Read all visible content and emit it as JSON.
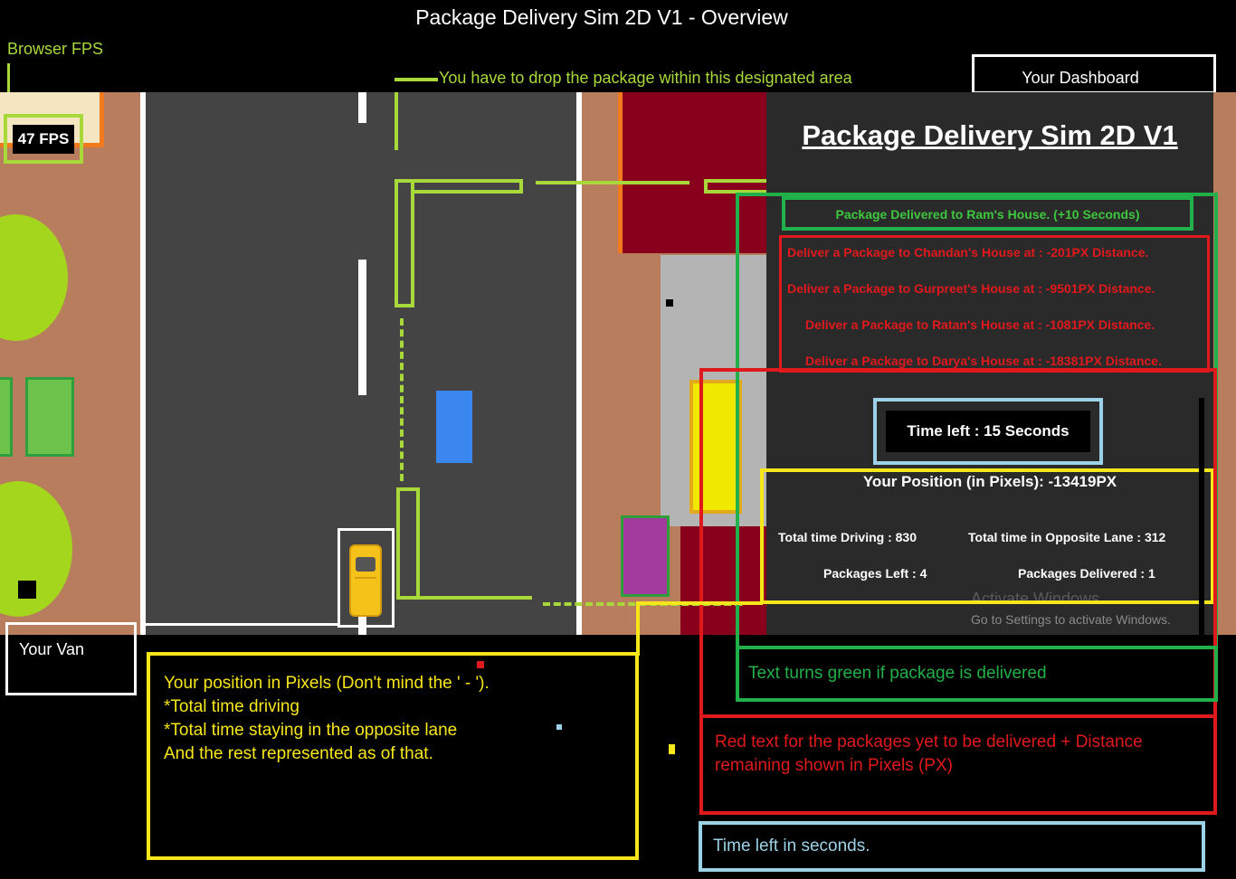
{
  "window_title": "Package Delivery Sim 2D V1 - Overview",
  "annotations": {
    "browser_fps": "Browser FPS",
    "drop_area": "You  have to drop the package within this designated area",
    "your_dashboard": "Your Dashboard",
    "your_van": "Your Van",
    "position_note": [
      "Your position in Pixels (Don't mind the ' - ').",
      "*Total time driving",
      "*Total time staying in the opposite lane",
      "And the rest represented as of that."
    ],
    "green_note": "Text turns green if package is delivered",
    "red_note": "Red text for the packages yet to be delivered + Distance remaining shown in Pixels (PX)",
    "time_note": "Time left in seconds."
  },
  "hud": {
    "fps": "47 FPS"
  },
  "dashboard": {
    "title": "Package Delivery Sim 2D V1",
    "delivered_message": "Package Delivered to Ram's House. (+10 Seconds)",
    "pending": [
      "Deliver a Package to Chandan's House at : -201PX Distance.",
      "Deliver a Package to Gurpreet's House at : -9501PX Distance.",
      "Deliver a Package to Ratan's House at : -1081PX Distance.",
      "Deliver a Package to Darya's House at : -18381PX Distance."
    ],
    "time_left": "Time left : 15 Seconds",
    "position": "Your Position (in Pixels): -13419PX",
    "total_driving": "Total time Driving : 830",
    "total_opposite": "Total time in Opposite Lane : 312",
    "packages_left": "Packages Left : 4",
    "packages_delivered": "Packages Delivered : 1",
    "watermark_title": "Activate Windows",
    "watermark_sub": "Go to Settings to activate Windows."
  },
  "colors": {
    "annotation_lime": "#a8d83a",
    "annotation_green": "#22b04a",
    "annotation_red": "#e0191d",
    "annotation_blue": "#9cd2e8",
    "annotation_yellow": "#f6e61a",
    "road": "#444444",
    "sidewalk": "#b87d5c",
    "house_red": "#88001b"
  }
}
